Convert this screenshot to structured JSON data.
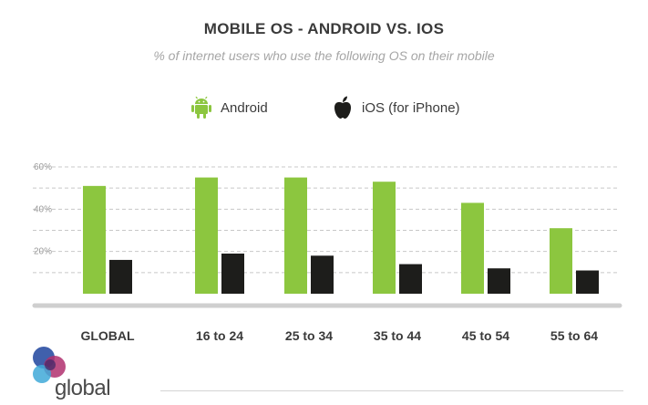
{
  "chart_data": {
    "type": "bar",
    "title": "MOBILE OS - ANDROID VS. IOS",
    "subtitle": "% of internet users who use the following OS on their mobile",
    "categories": [
      "GLOBAL",
      "16 to 24",
      "25 to 34",
      "35 to 44",
      "45 to 54",
      "55 to 64"
    ],
    "series": [
      {
        "name": "Android",
        "values": [
          51,
          55,
          55,
          53,
          43,
          31
        ],
        "color": "#8cc63f"
      },
      {
        "name": "iOS (for iPhone)",
        "values": [
          16,
          19,
          18,
          14,
          12,
          11
        ],
        "color": "#1d1d1b"
      }
    ],
    "y_ticks": [
      {
        "value": 20,
        "label": "20%"
      },
      {
        "value": 40,
        "label": "40%"
      },
      {
        "value": 60,
        "label": "60%"
      }
    ],
    "ylim": [
      0,
      60
    ],
    "grid": true,
    "legend_position": "top-center"
  },
  "legend": {
    "android": {
      "label": "Android",
      "icon": "android-icon"
    },
    "ios": {
      "label": "iOS (for iPhone)",
      "icon": "apple-icon"
    }
  },
  "brand": {
    "logo_text": "global",
    "colors": [
      "#2b4fa3",
      "#b0306e",
      "#3fa9d8"
    ]
  }
}
